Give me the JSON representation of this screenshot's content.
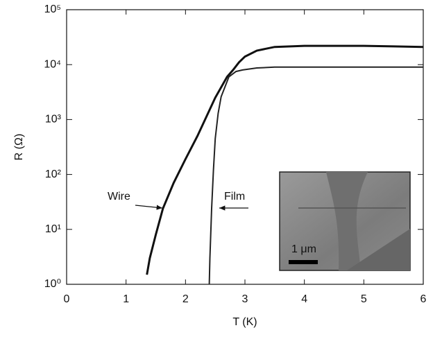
{
  "chart_data": {
    "type": "line",
    "xlabel": "T (K)",
    "ylabel": "R (Ω)",
    "series": [
      {
        "name": "Wire",
        "color": "#111111",
        "x": [
          1.35,
          1.4,
          1.5,
          1.62,
          1.8,
          2.0,
          2.2,
          2.5,
          2.7,
          2.8,
          2.9,
          3.0,
          3.2,
          3.5,
          4.0,
          4.5,
          5.0,
          5.5,
          6.0
        ],
        "values": [
          1.5,
          3,
          8,
          24,
          70,
          190,
          500,
          2500,
          6000,
          8000,
          11000,
          14000,
          18000,
          21000,
          22000,
          22000,
          22000,
          21500,
          21000
        ]
      },
      {
        "name": "Film",
        "color": "#222222",
        "x": [
          2.4,
          2.41,
          2.44,
          2.47,
          2.5,
          2.55,
          2.6,
          2.73,
          2.85,
          2.96,
          3.2,
          3.5,
          4.0,
          5.0,
          6.0
        ],
        "values": [
          1,
          3,
          24,
          120,
          450,
          1300,
          2600,
          6000,
          7500,
          8000,
          8700,
          9000,
          9000,
          9000,
          9000
        ]
      }
    ],
    "annotations": [
      "1 μm"
    ],
    "xlim": [
      0,
      6
    ],
    "xticks": [
      0,
      1,
      2,
      3,
      4,
      5,
      6
    ],
    "ylim": [
      1,
      100000
    ],
    "log_y": true,
    "yticks": [
      {
        "value": 1,
        "label": "10⁰"
      },
      {
        "value": 10,
        "label": "10¹"
      },
      {
        "value": 100,
        "label": "10²"
      },
      {
        "value": 1000,
        "label": "10³"
      },
      {
        "value": 10000,
        "label": "10⁴"
      },
      {
        "value": 100000,
        "label": "10⁵"
      }
    ]
  }
}
